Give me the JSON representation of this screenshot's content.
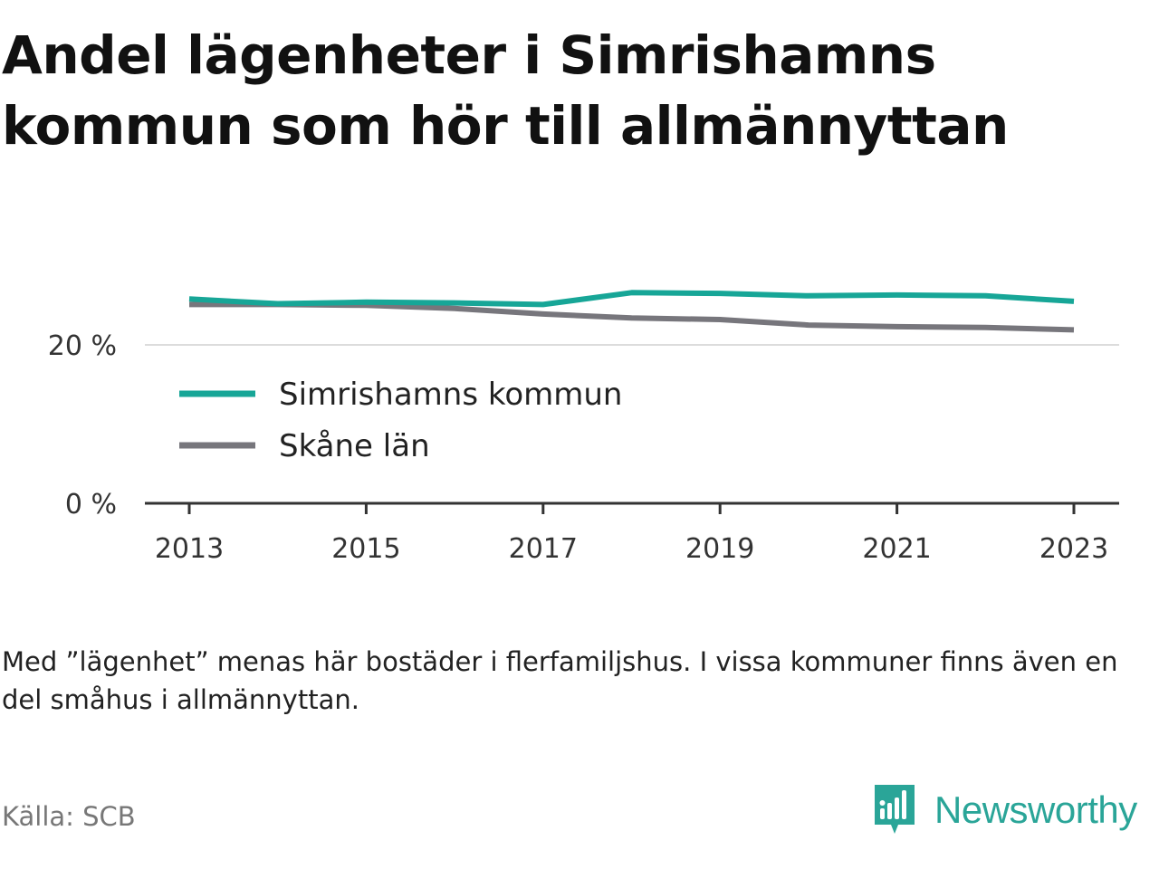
{
  "title": "Andel lägenheter i Simrishamns kommun som hör till allmännyttan",
  "note": "Med ”lägenhet” menas här bostäder i flerfamiljshus. I vissa kommuner finns även en del småhus i allmännyttan.",
  "source": "Källa: SCB",
  "brand": {
    "name": "Newsworthy",
    "color": "#2aa598"
  },
  "chart_data": {
    "type": "line",
    "x": [
      2013,
      2014,
      2015,
      2016,
      2017,
      2018,
      2019,
      2020,
      2021,
      2022,
      2023
    ],
    "x_ticks": [
      "2013",
      "2015",
      "2017",
      "2019",
      "2021",
      "2023"
    ],
    "y_ticks": [
      {
        "value": 0,
        "label": "0 %"
      },
      {
        "value": 20,
        "label": "20 %"
      }
    ],
    "ylim": [
      0,
      26
    ],
    "grid": true,
    "legend": "inside-left",
    "series": [
      {
        "name": "Simrishamns kommun",
        "color": "#17a697",
        "values": [
          25.8,
          25.2,
          25.4,
          25.3,
          25.1,
          26.6,
          26.5,
          26.2,
          26.3,
          26.2,
          25.5
        ]
      },
      {
        "name": "Skåne län",
        "color": "#77767c",
        "values": [
          25.1,
          25.1,
          25.0,
          24.6,
          23.9,
          23.4,
          23.2,
          22.5,
          22.3,
          22.2,
          21.9
        ]
      }
    ]
  }
}
